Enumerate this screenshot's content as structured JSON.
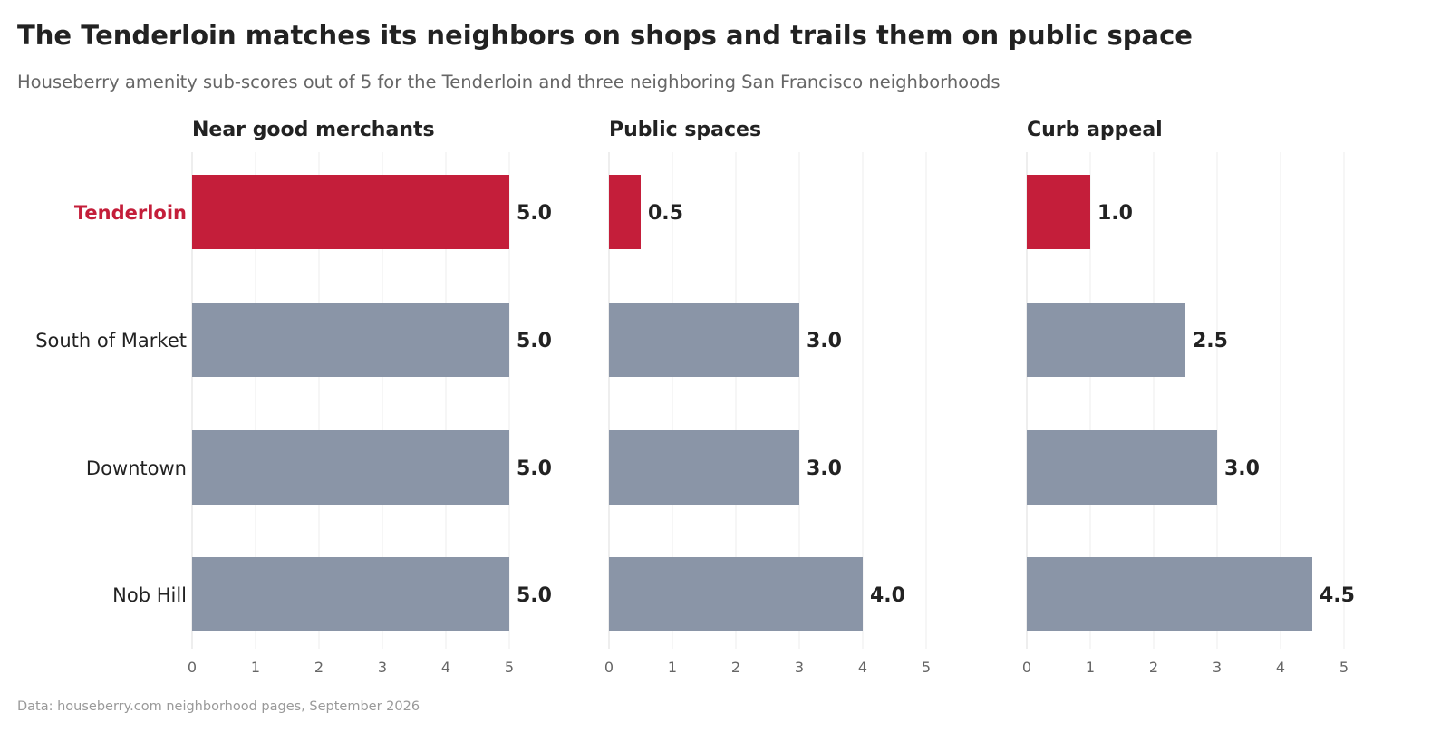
{
  "header": {
    "title": "The Tenderloin matches its neighbors on shops and trails them on public space",
    "subtitle": "Houseberry amenity sub-scores out of 5 for the Tenderloin and three neighboring San Francisco neighborhoods"
  },
  "footer": {
    "source": "Data: houseberry.com neighborhood pages, September 2026"
  },
  "colors": {
    "highlight": "#c41e3a",
    "bar": "#8a95a7",
    "grid": "#eeeeee",
    "axis": "#dddddd",
    "tick": "#666666",
    "text": "#222222"
  },
  "chart_data": {
    "type": "bar",
    "orientation": "horizontal",
    "categories": [
      "Tenderloin",
      "South of Market",
      "Downtown",
      "Nob Hill"
    ],
    "highlight_category": "Tenderloin",
    "xlim": [
      0,
      5
    ],
    "xticks": [
      "0",
      "1",
      "2",
      "3",
      "4",
      "5"
    ],
    "grid": true,
    "panels": [
      {
        "title": "Near good merchants",
        "values": [
          5.0,
          5.0,
          5.0,
          5.0
        ],
        "value_labels": [
          "5.0",
          "5.0",
          "5.0",
          "5.0"
        ]
      },
      {
        "title": "Public spaces",
        "values": [
          0.5,
          3.0,
          3.0,
          4.0
        ],
        "value_labels": [
          "0.5",
          "3.0",
          "3.0",
          "4.0"
        ]
      },
      {
        "title": "Curb appeal",
        "values": [
          1.0,
          2.5,
          3.0,
          4.5
        ],
        "value_labels": [
          "1.0",
          "2.5",
          "3.0",
          "4.5"
        ]
      }
    ]
  }
}
